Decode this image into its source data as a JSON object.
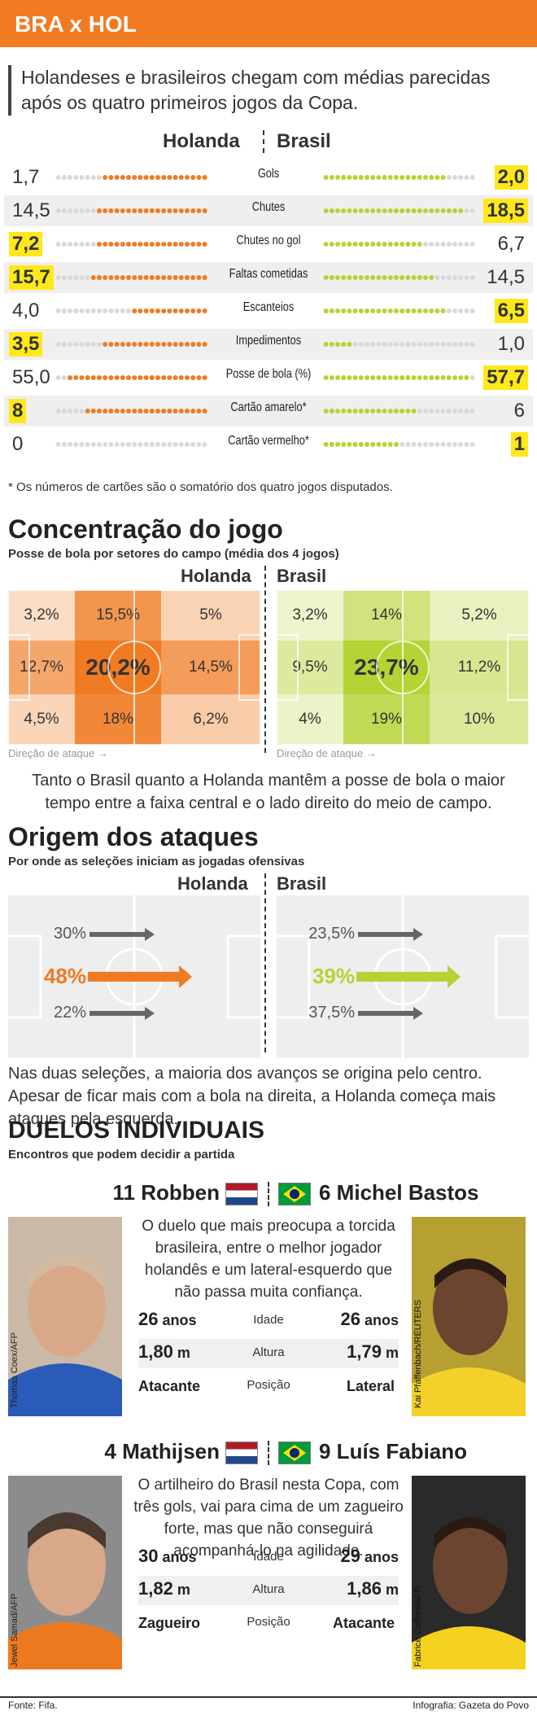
{
  "header": {
    "title": "BRA x HOL"
  },
  "intro": "Holandeses e brasileiros chegam com médias parecidas após os quatro primeiros jogos da Copa.",
  "stats": {
    "team_left": "Holanda",
    "team_right": "Brasil",
    "rows": [
      {
        "label": "Gols",
        "hol": "1,7",
        "bra": "2,0",
        "hol_val": 1.7,
        "bra_val": 2.0,
        "highlight": "bra"
      },
      {
        "label": "Chutes",
        "hol": "14,5",
        "bra": "18,5",
        "hol_val": 14.5,
        "bra_val": 18.5,
        "highlight": "bra"
      },
      {
        "label": "Chutes no gol",
        "hol": "7,2",
        "bra": "6,7",
        "hol_val": 7.2,
        "bra_val": 6.7,
        "highlight": "hol"
      },
      {
        "label": "Faltas cometidas",
        "hol": "15,7",
        "bra": "14,5",
        "hol_val": 15.7,
        "bra_val": 14.5,
        "highlight": "hol"
      },
      {
        "label": "Escanteios",
        "hol": "4,0",
        "bra": "6,5",
        "hol_val": 4.0,
        "bra_val": 6.5,
        "highlight": "bra"
      },
      {
        "label": "Impedimentos",
        "hol": "3,5",
        "bra": "1,0",
        "hol_val": 3.5,
        "bra_val": 1.0,
        "highlight": "hol"
      },
      {
        "label": "Posse de bola (%)",
        "hol": "55,0",
        "bra": "57,7",
        "hol_val": 55.0,
        "bra_val": 57.7,
        "highlight": "bra"
      },
      {
        "label": "Cartão amarelo*",
        "hol": "8",
        "bra": "6",
        "hol_val": 8,
        "bra_val": 6,
        "highlight": "hol"
      },
      {
        "label": "Cartão vermelho*",
        "hol": "0",
        "bra": "1",
        "hol_val": 0,
        "bra_val": 1,
        "highlight": "bra"
      }
    ],
    "footnote": "* Os números de cartões são o somatório dos quatro jogos disputados."
  },
  "concentration": {
    "title": "Concentração do jogo",
    "subtitle": "Posse de bola por setores do campo (média dos 4 jogos)",
    "team_left": "Holanda",
    "team_right": "Brasil",
    "holanda": [
      "3,2%",
      "15,5%",
      "5%",
      "12,7%",
      "20,2%",
      "14,5%",
      "4,5%",
      "18%",
      "6,2%"
    ],
    "brasil": [
      "3,2%",
      "14%",
      "5,2%",
      "9,5%",
      "23,7%",
      "11,2%",
      "4%",
      "19%",
      "10%"
    ],
    "direction": "Direção de ataque →",
    "caption": "Tanto o Brasil quanto a Holanda mantêm a posse de bola o maior tempo entre a faixa central e o lado direito do meio de campo."
  },
  "attacks": {
    "title": "Origem dos ataques",
    "subtitle": "Por onde as seleções iniciam as jogadas ofensivas",
    "team_left": "Holanda",
    "team_right": "Brasil",
    "holanda": [
      "30%",
      "48%",
      "22%"
    ],
    "brasil": [
      "23,5%",
      "39%",
      "37,5%"
    ],
    "caption": "Nas duas seleções, a maioria dos avanços se origina pelo centro. Apesar de ficar mais com a bola na direita, a Holanda começa mais ataques pela esquerda."
  },
  "duels": {
    "title": "DUELOS INDIVIDUAIS",
    "subtitle": "Encontros que podem decidir a partida",
    "items": [
      {
        "left_name": "11 Robben",
        "right_name": "6 Michel Bastos",
        "text": "O duelo que mais preocupa a torcida brasileira, entre o melhor jogador holandês e um lateral-esquerdo que não passa muita confiança.",
        "left_credit": "Thomas Coex/AFP",
        "right_credit": "Kai Pfaffenbach/REUTERS",
        "rows": [
          {
            "label": "Idade",
            "left_num": "26",
            "left_unit": "anos",
            "right_num": "26",
            "right_unit": "anos"
          },
          {
            "label": "Altura",
            "left_num": "1,80",
            "left_unit": "m",
            "right_num": "1,79",
            "right_unit": "m"
          },
          {
            "label": "Posição",
            "left_num": "Atacante",
            "left_unit": "",
            "right_num": "Lateral",
            "right_unit": ""
          }
        ]
      },
      {
        "left_name": "4 Mathijsen",
        "right_name": "9 Luís Fabiano",
        "text": "O artilheiro do Brasil nesta Copa, com três gols, vai para cima de um zagueiro forte, mas que não conseguirá acompanhá-lo na agilidade.",
        "left_credit": "Jewel Samad/AFP",
        "right_credit": "Fabrice Coffrini/AFP",
        "rows": [
          {
            "label": "Idade",
            "left_num": "30",
            "left_unit": "anos",
            "right_num": "29",
            "right_unit": "anos"
          },
          {
            "label": "Altura",
            "left_num": "1,82",
            "left_unit": "m",
            "right_num": "1,86",
            "right_unit": "m"
          },
          {
            "label": "Posição",
            "left_num": "Zagueiro",
            "left_unit": "",
            "right_num": "Atacante",
            "right_unit": ""
          }
        ]
      }
    ]
  },
  "footer": {
    "source": "Fonte: Fifa.",
    "credit": "Infografia: Gazeta do Povo"
  },
  "colors": {
    "orange": "#f07b22",
    "green": "#b5d334",
    "highlight": "#ffe81a"
  }
}
